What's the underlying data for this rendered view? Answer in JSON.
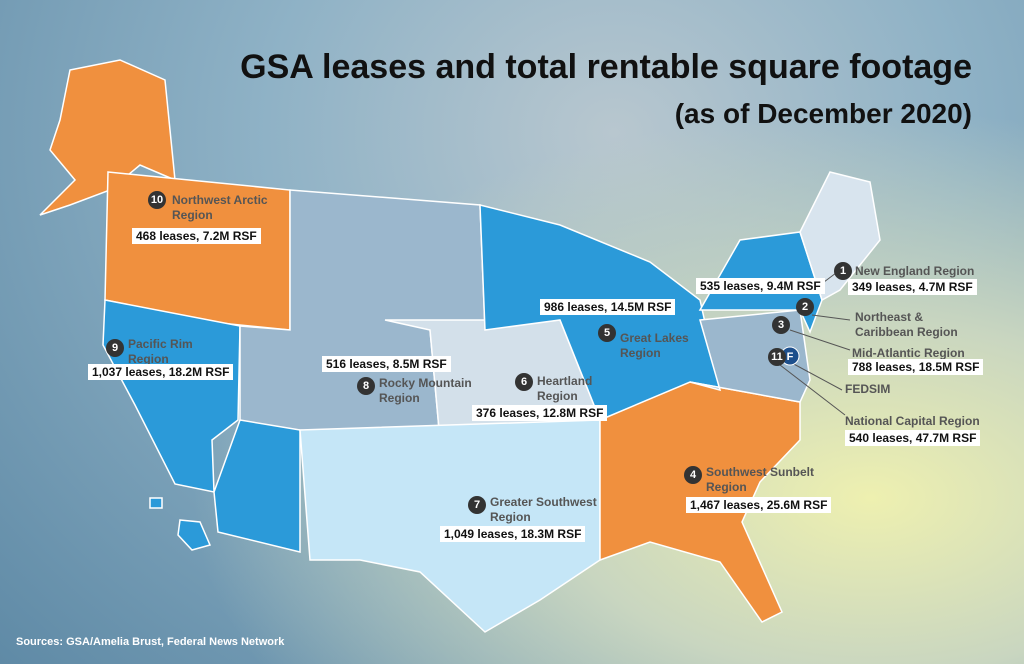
{
  "title": "GSA leases and total rentable square footage",
  "subtitle": "(as of December 2020)",
  "source": "Sources: GSA/Amelia Brust, Federal News Network",
  "fedsim": {
    "marker": "F",
    "name": "FEDSIM"
  },
  "regions": [
    {
      "number": "1",
      "name": [
        "New England Region"
      ],
      "stats": "349 leases, 4.7M RSF"
    },
    {
      "number": "2",
      "name": [
        "Northeast &",
        "Caribbean Region"
      ],
      "stats": "535 leases, 9.4M RSF"
    },
    {
      "number": "3",
      "name": [
        "Mid-Atlantic Region"
      ],
      "stats": "788 leases, 18.5M RSF"
    },
    {
      "number": "4",
      "name": [
        "Southwest Sunbelt",
        "Region"
      ],
      "stats": "1,467 leases, 25.6M RSF"
    },
    {
      "number": "5",
      "name": [
        "Great Lakes",
        "Region"
      ],
      "stats": "986 leases, 14.5M RSF"
    },
    {
      "number": "6",
      "name": [
        "Heartland",
        "Region"
      ],
      "stats": "376 leases, 12.8M RSF"
    },
    {
      "number": "7",
      "name": [
        "Greater Southwest",
        "Region"
      ],
      "stats": "1,049 leases, 18.3M RSF"
    },
    {
      "number": "8",
      "name": [
        "Rocky Mountain",
        "Region"
      ],
      "stats": "516 leases, 8.5M RSF"
    },
    {
      "number": "9",
      "name": [
        "Pacific Rim",
        "Region"
      ],
      "stats": "1,037 leases, 18.2M RSF"
    },
    {
      "number": "10",
      "name": [
        "Northwest Arctic",
        "Region"
      ],
      "stats": "468 leases, 7.2M RSF"
    },
    {
      "number": "11",
      "name": [
        "National Capital Region"
      ],
      "stats": "540 leases, 47.7M RSF"
    }
  ]
}
